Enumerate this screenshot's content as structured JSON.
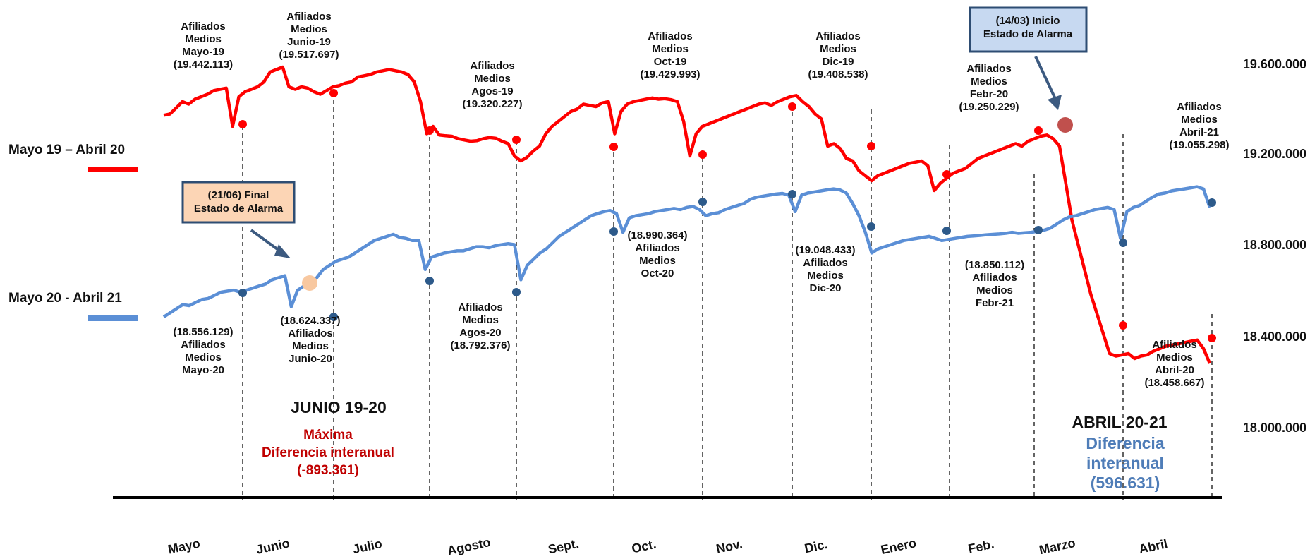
{
  "chart_data": {
    "type": "line",
    "y_ticks": [
      "19.600.000",
      "19.200.000",
      "18.800.000",
      "18.400.000",
      "18.000.000"
    ],
    "y_tick_values": [
      19600000,
      19200000,
      18800000,
      18400000,
      18000000
    ],
    "x_labels": [
      "Mayo",
      "Junio",
      "Julio",
      "Agosto",
      "Sept.",
      "Oct.",
      "Nov.",
      "Dic.",
      "Enero",
      "Feb.",
      "Marzo",
      "Abril"
    ],
    "legend": [
      {
        "label": "Mayo 19 – Abril 20",
        "color": "#ff0000"
      },
      {
        "label": "Mayo 20 -  Abril 21",
        "color": "#5b8fd6"
      }
    ],
    "series": [
      {
        "name": "Mayo 19 – Abril 20",
        "color": "#ff0000",
        "monthly_values": [
          19442113,
          19517697,
          19320227,
          19320227,
          19429993,
          19429993,
          19408538,
          19408538,
          19250229,
          19250229,
          18458667,
          18458667
        ],
        "daily_values": [
          19425000,
          19430000,
          19455000,
          19480000,
          19470000,
          19490000,
          19500000,
          19510000,
          19525000,
          19530000,
          19535000,
          19380000,
          19500000,
          19520000,
          19530000,
          19540000,
          19560000,
          19600000,
          19610000,
          19620000,
          19540000,
          19530000,
          19540000,
          19535000,
          19520000,
          19510000,
          19525000,
          19540000,
          19545000,
          19555000,
          19560000,
          19580000,
          19585000,
          19590000,
          19600000,
          19605000,
          19610000,
          19605000,
          19600000,
          19590000,
          19560000,
          19480000,
          19350000,
          19380000,
          19345000,
          19342000,
          19340000,
          19330000,
          19325000,
          19320000,
          19322000,
          19330000,
          19335000,
          19332000,
          19320000,
          19310000,
          19260000,
          19240000,
          19255000,
          19280000,
          19300000,
          19350000,
          19380000,
          19400000,
          19420000,
          19440000,
          19450000,
          19470000,
          19465000,
          19460000,
          19475000,
          19480000,
          19350000,
          19440000,
          19470000,
          19480000,
          19485000,
          19490000,
          19495000,
          19490000,
          19492000,
          19488000,
          19480000,
          19400000,
          19260000,
          19350000,
          19380000,
          19390000,
          19400000,
          19410000,
          19420000,
          19430000,
          19440000,
          19450000,
          19460000,
          19470000,
          19475000,
          19465000,
          19480000,
          19490000,
          19500000,
          19505000,
          19480000,
          19460000,
          19430000,
          19410000,
          19300000,
          19310000,
          19290000,
          19250000,
          19240000,
          19200000,
          19180000,
          19160000,
          19180000,
          19190000,
          19200000,
          19210000,
          19220000,
          19230000,
          19235000,
          19240000,
          19220000,
          19120000,
          19150000,
          19170000,
          19190000,
          19200000,
          19210000,
          19230000,
          19250000,
          19260000,
          19270000,
          19280000,
          19290000,
          19300000,
          19310000,
          19300000,
          19320000,
          19330000,
          19340000,
          19345000,
          19330000,
          19300000,
          19150000,
          19000000,
          18900000,
          18800000,
          18700000,
          18620000,
          18540000,
          18460000,
          18450000,
          18455000,
          18460000,
          18440000,
          18450000,
          18455000,
          18470000,
          18480000,
          18490000,
          18495000,
          18500000,
          18505000,
          18510000,
          18515000,
          18480000,
          18420000
        ]
      },
      {
        "name": "Mayo 20 -  Abril 21",
        "color": "#5b8fd6",
        "monthly_values": [
          18556129,
          18624337,
          18624337,
          18792376,
          18990364,
          18990364,
          19048433,
          19048433,
          18850112,
          18850112,
          19055298,
          19055298
        ],
        "daily_values": [
          18470000,
          18490000,
          18510000,
          18530000,
          18525000,
          18540000,
          18555000,
          18560000,
          18575000,
          18590000,
          18595000,
          18600000,
          18590000,
          18600000,
          18610000,
          18620000,
          18630000,
          18650000,
          18660000,
          18670000,
          18520000,
          18600000,
          18620000,
          18640000,
          18660000,
          18700000,
          18720000,
          18740000,
          18750000,
          18760000,
          18780000,
          18800000,
          18820000,
          18840000,
          18850000,
          18860000,
          18870000,
          18855000,
          18850000,
          18840000,
          18840000,
          18700000,
          18760000,
          18770000,
          18780000,
          18785000,
          18790000,
          18790000,
          18800000,
          18810000,
          18810000,
          18805000,
          18815000,
          18820000,
          18825000,
          18820000,
          18650000,
          18720000,
          18750000,
          18780000,
          18800000,
          18830000,
          18860000,
          18880000,
          18900000,
          18920000,
          18940000,
          18960000,
          18970000,
          18980000,
          18985000,
          18970000,
          18880000,
          18950000,
          18960000,
          18965000,
          18970000,
          18980000,
          18985000,
          18990000,
          18995000,
          18990000,
          19000000,
          19005000,
          18990000,
          18960000,
          18970000,
          18975000,
          18990000,
          19000000,
          19010000,
          19020000,
          19040000,
          19050000,
          19055000,
          19060000,
          19065000,
          19068000,
          19060000,
          18980000,
          19060000,
          19070000,
          19075000,
          19080000,
          19085000,
          19090000,
          19085000,
          19070000,
          19020000,
          18960000,
          18880000,
          18780000,
          18800000,
          18810000,
          18820000,
          18830000,
          18840000,
          18845000,
          18850000,
          18855000,
          18860000,
          18850000,
          18840000,
          18845000,
          18850000,
          18855000,
          18860000,
          18862000,
          18865000,
          18868000,
          18870000,
          18872000,
          18875000,
          18880000,
          18875000,
          18878000,
          18880000,
          18885000,
          18890000,
          18900000,
          18920000,
          18940000,
          18955000,
          18960000,
          18970000,
          18980000,
          18990000,
          18995000,
          19000000,
          18990000,
          18850000,
          18980000,
          19000000,
          19010000,
          19030000,
          19050000,
          19065000,
          19070000,
          19080000,
          19085000,
          19090000,
          19095000,
          19100000,
          19090000,
          19000000
        ]
      }
    ],
    "annotations": {
      "red_labels": [
        "Afiliados\nMedios\nMayo-19\n(19.442.113)",
        "Afiliados\nMedios\nJunio-19\n(19.517.697)",
        "Afiliados\nMedios\nAgos-19\n(19.320.227)",
        "Afiliados\nMedios\nOct-19\n(19.429.993)",
        "Afiliados\nMedios\nDic-19\n(19.408.538)",
        "Afiliados\nMedios\nFebr-20\n(19.250.229)",
        "Afiliados\nMedios\nAbril-20\n(18.458.667)",
        "Afiliados\nMedios\nAbril-21\n(19.055.298)"
      ],
      "blue_labels": [
        "(18.556.129)\nAfiliados\nMedios\nMayo-20",
        "(18.624.337)\nAfiliados\nMedios\nJunio-20",
        "Afiliados\nMedios\nAgos-20\n(18.792.376)",
        "(18.990.364)\nAfiliados\nMedios\nOct-20",
        "(19.048.433)\nAfiliados\nMedios\nDic-20",
        "(18.850.112)\nAfiliados\nMedios\nFebr-21"
      ],
      "box_inicio": "(14/03) Inicio\nEstado de Alarma",
      "box_final": "(21/06) Final\nEstado de Alarma",
      "junio_title": "JUNIO 19-20",
      "junio_text": "Máxima\nDiferencia interanual\n(-893.361)",
      "abril_title": "ABRIL 20-21",
      "abril_text": "Diferencia\ninteranual\n(596.631)"
    }
  }
}
